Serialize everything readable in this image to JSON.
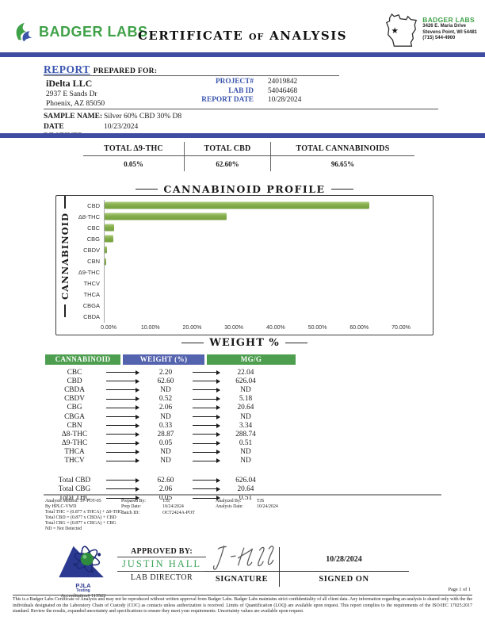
{
  "header": {
    "brand": "BADGER LABS",
    "title_pre": "CERTIFICATE",
    "title_mid": "of",
    "title_post": "ANALYSIS",
    "lab_card": {
      "name": "BADGER LABS",
      "address1": "3426 E. Maria Drive",
      "address2": "Stevens Point, WI 54481",
      "phone": "(715) 544-4900"
    }
  },
  "report": {
    "section_title": "REPORT",
    "section_subtitle": "PREPARED FOR:",
    "client": {
      "name": "iDelta LLC",
      "address1": "2937 E Sands Dr",
      "address2": "Phoenix, AZ 85050"
    },
    "meta": [
      {
        "label": "PROJECT#",
        "value": "24019842"
      },
      {
        "label": "LAB ID",
        "value": "54046468"
      },
      {
        "label": "REPORT DATE",
        "value": "10/28/2024"
      }
    ],
    "sample_name_label": "SAMPLE NAME:",
    "sample_name": "Silver 60% CBD 30% D8",
    "date_received_label": "DATE RECEIVED:",
    "date_received": "10/23/2024"
  },
  "totals": [
    {
      "label": "TOTAL Δ9-THC",
      "value": "0.05%"
    },
    {
      "label": "TOTAL CBD",
      "value": "62.60%"
    },
    {
      "label": "TOTAL CANNABINOIDS",
      "value": "96.65%"
    }
  ],
  "chart_data": {
    "type": "bar",
    "orientation": "horizontal",
    "title": "CANNABINOID PROFILE",
    "xlabel": "WEIGHT %",
    "ylabel": "CANNABINOID",
    "categories": [
      "CBD",
      "Δ8-THC",
      "CBC",
      "CBG",
      "CBDV",
      "CBN",
      "Δ9-THC",
      "THCV",
      "THCA",
      "CBGA",
      "CBDA"
    ],
    "values": [
      62.6,
      28.87,
      2.2,
      2.06,
      0.52,
      0.33,
      0.05,
      0,
      0,
      0,
      0
    ],
    "xlim": [
      0,
      70
    ],
    "xticks": [
      "0.00%",
      "10.00%",
      "20.00%",
      "30.00%",
      "40.00%",
      "50.00%",
      "60.00%",
      "70.00%"
    ],
    "grid": false,
    "legend": false,
    "bar_color": "#7fab48"
  },
  "results_table": {
    "headers": [
      "CANNABINOID",
      "WEIGHT (%)",
      "MG/G"
    ],
    "rows": [
      [
        "CBC",
        "2.20",
        "22.04"
      ],
      [
        "CBD",
        "62.60",
        "626.04"
      ],
      [
        "CBDA",
        "ND",
        "ND"
      ],
      [
        "CBDV",
        "0.52",
        "5.18"
      ],
      [
        "CBG",
        "2.06",
        "20.64"
      ],
      [
        "CBGA",
        "ND",
        "ND"
      ],
      [
        "CBN",
        "0.33",
        "3.34"
      ],
      [
        "Δ8-THC",
        "28.87",
        "288.74"
      ],
      [
        "Δ9-THC",
        "0.05",
        "0.51"
      ],
      [
        "THCA",
        "ND",
        "ND"
      ],
      [
        "THCV",
        "ND",
        "ND"
      ]
    ],
    "total_rows": [
      [
        "Total CBD",
        "62.60",
        "626.04"
      ],
      [
        "Total CBG",
        "2.06",
        "20.64"
      ],
      [
        "Total THC",
        "0.05",
        "0.51"
      ]
    ]
  },
  "footnotes": {
    "left": [
      "Analysis Method: TP-POT-05",
      "By HPLC-VWD",
      "Total THC = (0.877 x THCA) + Δ9-THC",
      "Total CBD = (0.877 x CBDA) + CBD",
      "Total CBG = (0.877 x CBGA) + CBG",
      "ND = Not Detected"
    ],
    "prepared": [
      {
        "label": "Prepared By:",
        "value": "TJS"
      },
      {
        "label": "Prep Date:",
        "value": "10/24/2024"
      },
      {
        "label": "Batch ID:",
        "value": "OCT2424A-POT"
      }
    ],
    "analyzed": [
      {
        "label": "Analyzed By:",
        "value": "TJS"
      },
      {
        "label": "Analysis Date:",
        "value": "10/24/2024"
      }
    ]
  },
  "approval": {
    "accreditation_org": "PJLA",
    "accreditation_sub": "Testing",
    "accreditation_number": "Accreditation# 115522",
    "approved_by_label": "APPROVED BY:",
    "approved_by_name": "JUSTIN HALL",
    "approved_by_title": "LAB DIRECTOR",
    "signature_label": "SIGNATURE",
    "signed_on_date": "10/28/2024",
    "signed_on_label": "SIGNED ON"
  },
  "footer": {
    "page": "Page 1 of 1",
    "disclaimer": "This is a Badger Labs Certificate of Analysis and may not be reproduced without written approval from Badger Labs. Badger Labs maintains strict confidentiality of all client data. Any information regarding an analysis is shared only with the the individuals designated on the Laboratory Chain of Custody (COC) as contacts unless authorization is received. Limits of Quantification (LOQ) are available upon request. This report complies to the requirements of the ISO/IEC 17025:2017 standard. Review the results, expanded uncertainty and specifications to ensure they meet your requirements. Uncertainty values are available upon request."
  },
  "colors": {
    "accent_blue": "#3e4da1",
    "label_blue": "#3a55ad",
    "brand_green": "#3fa148",
    "bar_green": "#7fab48",
    "table_header_green": "#4e9e50",
    "table_header_blue": "#5463ae",
    "approver_green": "#3fa45b"
  }
}
